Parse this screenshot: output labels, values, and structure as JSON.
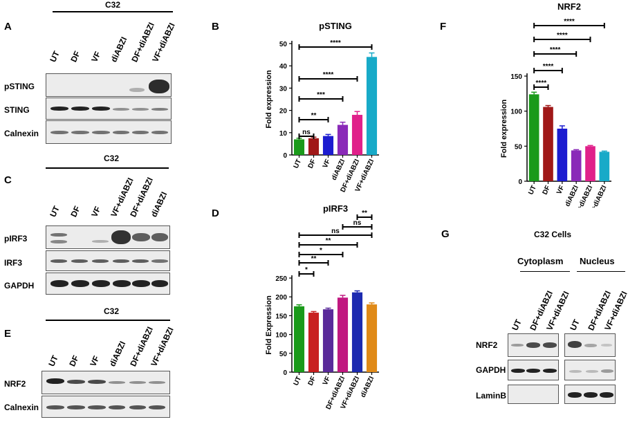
{
  "panels": {
    "A": {
      "letter": "A",
      "condition": "C32",
      "lanes": [
        "UT",
        "DF",
        "VF",
        "diABZI",
        "DF+diABZI",
        "VF+diABZI"
      ],
      "rows": [
        "pSTING",
        "STING",
        "Calnexin"
      ]
    },
    "C": {
      "letter": "C",
      "condition": "C32",
      "lanes": [
        "UT",
        "DF",
        "VF",
        "VF+diABZI",
        "DF+diABZI",
        "diABZI"
      ],
      "rows": [
        "pIRF3",
        "IRF3",
        "GAPDH"
      ]
    },
    "E": {
      "letter": "E",
      "condition": "C32",
      "lanes": [
        "UT",
        "DF",
        "VF",
        "diABZI",
        "DF+diABZI",
        "VF+diABZI"
      ],
      "rows": [
        "NRF2",
        "Calnexin"
      ]
    },
    "G": {
      "letter": "G",
      "title": "C32 Cells",
      "group1": "Cytoplasm",
      "group2": "Nucleus",
      "lanes": [
        "UT",
        "DF+diABZI",
        "VF+diABZI",
        "UT",
        "DF+diABZI",
        "VF+diABZI"
      ],
      "rows": [
        "NRF2",
        "GAPDH",
        "LaminB"
      ]
    }
  },
  "chart_data": [
    {
      "id": "B",
      "letter": "B",
      "type": "bar",
      "title": "pSTING",
      "xlabel": "",
      "ylabel": "Fold expression",
      "categories": [
        "UT",
        "DF",
        "VF",
        "diABZI",
        "DF+diABZI",
        "VF+diABZI"
      ],
      "values": [
        7,
        7.5,
        8.5,
        13.5,
        18,
        44
      ],
      "errors": [
        0.5,
        0.5,
        0.7,
        1.2,
        1.5,
        1.8
      ],
      "colors": [
        "#1a9a1a",
        "#a01818",
        "#1c1cd0",
        "#8a2ab8",
        "#e0208a",
        "#18aac8"
      ],
      "ylim": [
        0,
        50
      ],
      "yticks": [
        0,
        10,
        20,
        30,
        40,
        50
      ],
      "brackets": [
        {
          "from": 0,
          "to": 1,
          "label": "ns"
        },
        {
          "from": 0,
          "to": 2,
          "label": "**"
        },
        {
          "from": 0,
          "to": 3,
          "label": "***"
        },
        {
          "from": 0,
          "to": 4,
          "label": "****"
        },
        {
          "from": 0,
          "to": 5,
          "label": "****"
        }
      ]
    },
    {
      "id": "D",
      "letter": "D",
      "type": "bar",
      "title": "pIRF3",
      "xlabel": "",
      "ylabel": "Fold Expression",
      "categories": [
        "UT",
        "DF",
        "VF",
        "DF+diABZI",
        "VF+diABZI",
        "diABZI"
      ],
      "values": [
        175,
        158,
        167,
        198,
        212,
        180
      ],
      "errors": [
        4,
        3,
        3,
        6,
        4,
        4
      ],
      "colors": [
        "#1a9a1a",
        "#c82020",
        "#5a2a9a",
        "#c01880",
        "#1c2ab0",
        "#e08a18"
      ],
      "ylim": [
        0,
        250
      ],
      "yticks": [
        0,
        50,
        100,
        150,
        200,
        250
      ],
      "brackets": [
        {
          "from": 0,
          "to": 1,
          "label": "*"
        },
        {
          "from": 0,
          "to": 2,
          "label": "**"
        },
        {
          "from": 0,
          "to": 3,
          "label": "*"
        },
        {
          "from": 0,
          "to": 4,
          "label": "**"
        },
        {
          "from": 0,
          "to": 5,
          "label": "ns"
        },
        {
          "from": 3,
          "to": 5,
          "label": "ns"
        },
        {
          "from": 4,
          "to": 5,
          "label": "**"
        }
      ]
    },
    {
      "id": "F",
      "letter": "F",
      "type": "bar",
      "title": "NRF2",
      "xlabel": "",
      "ylabel": "Fold expression",
      "categories": [
        "UT",
        "DF",
        "VF",
        "diABZI",
        "DF+diABZI",
        "VF+diABZI"
      ],
      "values": [
        124,
        106,
        75,
        44,
        50,
        42
      ],
      "errors": [
        3,
        2,
        4,
        1,
        1,
        1
      ],
      "colors": [
        "#1a9a1a",
        "#a01818",
        "#1c1cd0",
        "#8a2ab8",
        "#e0208a",
        "#18aac8"
      ],
      "ylim": [
        0,
        150
      ],
      "yticks": [
        0,
        50,
        100,
        150
      ],
      "brackets": [
        {
          "from": 0,
          "to": 1,
          "label": "****"
        },
        {
          "from": 0,
          "to": 2,
          "label": "****"
        },
        {
          "from": 0,
          "to": 3,
          "label": "****"
        },
        {
          "from": 0,
          "to": 4,
          "label": "****"
        },
        {
          "from": 0,
          "to": 5,
          "label": "****"
        }
      ]
    }
  ]
}
